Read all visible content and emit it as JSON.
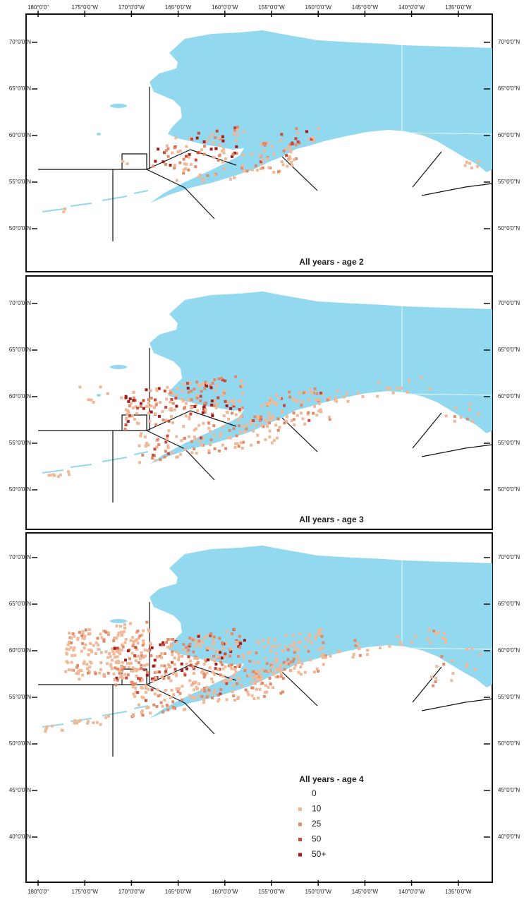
{
  "x_ticks": [
    "180°0'0\"",
    "175°0'0\"W",
    "170°0'0\"W",
    "165°0'0\"W",
    "160°0'0\"W",
    "155°0'0\"W",
    "150°0'0\"W",
    "145°0'0\"W",
    "140°0'0\"W",
    "135°0'0\"W"
  ],
  "y_ticks": [
    "70°0'0\"N",
    "65°0'0\"N",
    "60°0'0\"N",
    "55°0'0\"N",
    "50°0'0\"N",
    "45°0'0\"N",
    "40°0'0\"N"
  ],
  "panels": [
    {
      "title": "All years - age 2"
    },
    {
      "title": "All years - age 3"
    },
    {
      "title": "All years - age 4"
    }
  ],
  "legend": [
    {
      "label": "0"
    },
    {
      "label": "10",
      "color": "#f0b896"
    },
    {
      "label": "25",
      "color": "#e08a6a"
    },
    {
      "label": "50",
      "color": "#c8483a"
    },
    {
      "label": "50+",
      "color": "#a51b1b"
    }
  ]
}
